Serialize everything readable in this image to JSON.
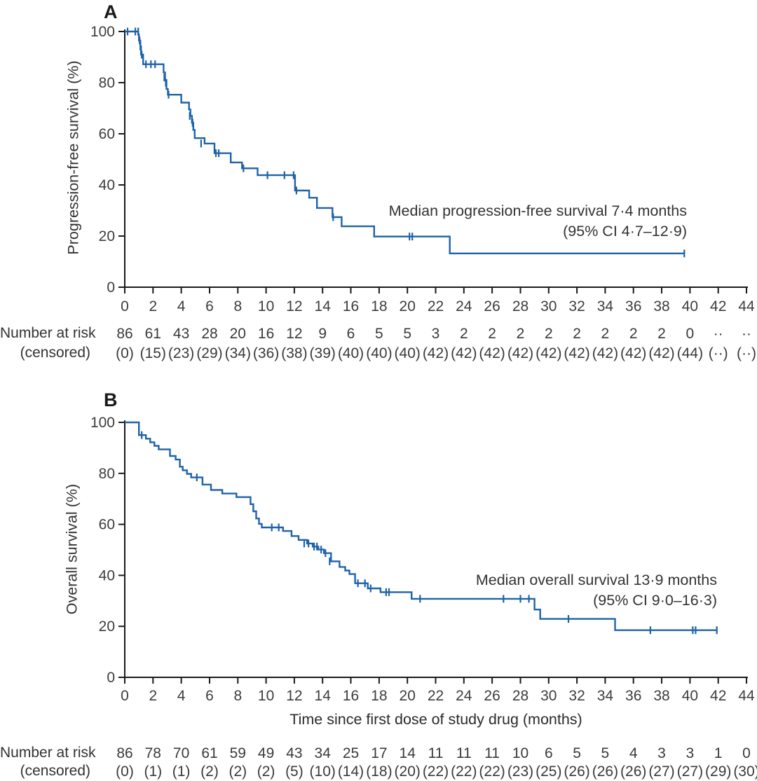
{
  "colors": {
    "curve": "#1e63a8",
    "axis": "#1a1a1a",
    "tick_text": "#3d3d3d",
    "risk_text": "#3a3a3a"
  },
  "chart_data": [
    {
      "type": "line",
      "subtype": "kaplan_meier_step",
      "panel_label": "A",
      "title": "",
      "xlabel": "",
      "ylabel": "Progression-free survival (%)",
      "xlim": [
        0,
        44
      ],
      "ylim": [
        0,
        100
      ],
      "x_ticks": [
        0,
        2,
        4,
        6,
        8,
        10,
        12,
        14,
        16,
        18,
        20,
        22,
        24,
        26,
        28,
        30,
        32,
        34,
        36,
        38,
        40,
        42,
        44
      ],
      "y_ticks": [
        0,
        20,
        40,
        60,
        80,
        100
      ],
      "grid": "off",
      "annotation": [
        "Median progression-free survival 7·4 months",
        "(95% CI 4·7–12·9)"
      ],
      "median_months": "7·4",
      "ci_95": "4·7–12·9",
      "series": [
        {
          "name": "Progression-free survival",
          "steps": [
            [
              0,
              100
            ],
            [
              0.95,
              98.8
            ],
            [
              1.0,
              96.5
            ],
            [
              1.1,
              94.2
            ],
            [
              1.15,
              91
            ],
            [
              1.3,
              87.2
            ],
            [
              2.75,
              84
            ],
            [
              2.85,
              81
            ],
            [
              2.95,
              77.5
            ],
            [
              3.05,
              75.3
            ],
            [
              4.0,
              72.2
            ],
            [
              4.55,
              69.5
            ],
            [
              4.65,
              67
            ],
            [
              4.75,
              64.3
            ],
            [
              4.85,
              61.5
            ],
            [
              4.95,
              58.3
            ],
            [
              5.65,
              56.2
            ],
            [
              6.35,
              52.4
            ],
            [
              7.5,
              48.8
            ],
            [
              8.3,
              46.5
            ],
            [
              9.4,
              43.8
            ],
            [
              12.05,
              37.8
            ],
            [
              13.05,
              35
            ],
            [
              13.6,
              31
            ],
            [
              14.7,
              27.4
            ],
            [
              15.35,
              23.8
            ],
            [
              17.65,
              19.8
            ],
            [
              23.0,
              13.2
            ],
            [
              39.6,
              13.2
            ]
          ],
          "censor_marks": [
            [
              0.2,
              100
            ],
            [
              0.75,
              100
            ],
            [
              0.95,
              100
            ],
            [
              1.05,
              96.5
            ],
            [
              1.1,
              94.2
            ],
            [
              1.2,
              91
            ],
            [
              1.5,
              87.2
            ],
            [
              1.85,
              87.2
            ],
            [
              2.15,
              87.2
            ],
            [
              2.8,
              82
            ],
            [
              2.9,
              80
            ],
            [
              3.1,
              75.3
            ],
            [
              4.6,
              67
            ],
            [
              4.8,
              64.3
            ],
            [
              5.4,
              56.2
            ],
            [
              6.45,
              52.4
            ],
            [
              6.65,
              52.4
            ],
            [
              8.4,
              46.5
            ],
            [
              10.1,
              43.8
            ],
            [
              11.3,
              43.8
            ],
            [
              11.95,
              43.8
            ],
            [
              12.15,
              37.8
            ],
            [
              14.75,
              27.4
            ],
            [
              20.15,
              19.8
            ],
            [
              20.35,
              19.8
            ],
            [
              39.6,
              13.2
            ]
          ]
        }
      ],
      "number_at_risk": {
        "label": "Number at risk",
        "censored_label": "(censored)",
        "at_risk": [
          "86",
          "61",
          "43",
          "28",
          "20",
          "16",
          "12",
          "9",
          "6",
          "5",
          "5",
          "3",
          "2",
          "2",
          "2",
          "2",
          "2",
          "2",
          "2",
          "2",
          "0",
          "··",
          "··"
        ],
        "censored": [
          "(0)",
          "(15)",
          "(23)",
          "(29)",
          "(34)",
          "(36)",
          "(38)",
          "(39)",
          "(40)",
          "(40)",
          "(40)",
          "(42)",
          "(42)",
          "(42)",
          "(42)",
          "(42)",
          "(42)",
          "(42)",
          "(42)",
          "(42)",
          "(44)",
          "(··)",
          "(··)"
        ]
      }
    },
    {
      "type": "line",
      "subtype": "kaplan_meier_step",
      "panel_label": "B",
      "title": "",
      "xlabel": "Time since first dose of study drug (months)",
      "ylabel": "Overall survival (%)",
      "xlim": [
        0,
        44
      ],
      "ylim": [
        0,
        100
      ],
      "x_ticks": [
        0,
        2,
        4,
        6,
        8,
        10,
        12,
        14,
        16,
        18,
        20,
        22,
        24,
        26,
        28,
        30,
        32,
        34,
        36,
        38,
        40,
        42,
        44
      ],
      "y_ticks": [
        0,
        20,
        40,
        60,
        80,
        100
      ],
      "grid": "off",
      "annotation": [
        "Median overall survival 13·9 months",
        "(95% CI 9·0–16·3)"
      ],
      "median_months": "13·9",
      "ci_95": "9·0–16·3",
      "series": [
        {
          "name": "Overall survival",
          "steps": [
            [
              0,
              100
            ],
            [
              1.0,
              95
            ],
            [
              1.5,
              93.6
            ],
            [
              1.8,
              92.2
            ],
            [
              2.1,
              90.8
            ],
            [
              2.4,
              89.4
            ],
            [
              3.2,
              86.8
            ],
            [
              3.6,
              85.4
            ],
            [
              3.9,
              82.6
            ],
            [
              4.1,
              81.2
            ],
            [
              4.4,
              79.8
            ],
            [
              4.7,
              78.4
            ],
            [
              5.5,
              75.6
            ],
            [
              6.1,
              73.5
            ],
            [
              6.9,
              72.1
            ],
            [
              7.9,
              70.7
            ],
            [
              8.9,
              67.9
            ],
            [
              9.1,
              65.1
            ],
            [
              9.3,
              62.3
            ],
            [
              9.5,
              60.2
            ],
            [
              9.7,
              58.8
            ],
            [
              11.2,
              57.4
            ],
            [
              11.8,
              55.4
            ],
            [
              12.3,
              53.9
            ],
            [
              12.9,
              52.5
            ],
            [
              13.3,
              51.3
            ],
            [
              13.7,
              50.1
            ],
            [
              14.1,
              48.7
            ],
            [
              14.6,
              45.5
            ],
            [
              15.2,
              43.3
            ],
            [
              15.6,
              41.9
            ],
            [
              15.9,
              40.5
            ],
            [
              16.3,
              36.9
            ],
            [
              17.2,
              34.9
            ],
            [
              18.1,
              33.4
            ],
            [
              20.3,
              30.8
            ],
            [
              29.0,
              26.6
            ],
            [
              29.4,
              22.9
            ],
            [
              34.7,
              18.5
            ],
            [
              41.9,
              18.5
            ]
          ],
          "censor_marks": [
            [
              1.2,
              95
            ],
            [
              5.1,
              78.4
            ],
            [
              10.4,
              58.8
            ],
            [
              10.9,
              58.8
            ],
            [
              12.7,
              52.5
            ],
            [
              13.0,
              52.5
            ],
            [
              13.4,
              51.3
            ],
            [
              13.6,
              51.3
            ],
            [
              13.9,
              50.1
            ],
            [
              14.2,
              48.7
            ],
            [
              14.5,
              45.5
            ],
            [
              16.5,
              36.9
            ],
            [
              17.0,
              36.9
            ],
            [
              17.4,
              34.9
            ],
            [
              18.5,
              33.4
            ],
            [
              18.7,
              33.4
            ],
            [
              20.9,
              30.8
            ],
            [
              26.8,
              30.8
            ],
            [
              28.0,
              30.8
            ],
            [
              28.6,
              30.8
            ],
            [
              31.4,
              22.9
            ],
            [
              37.2,
              18.5
            ],
            [
              40.2,
              18.5
            ],
            [
              40.4,
              18.5
            ],
            [
              41.9,
              18.5
            ]
          ]
        }
      ],
      "number_at_risk": {
        "label": "Number at risk",
        "censored_label": "(censored)",
        "at_risk": [
          "86",
          "78",
          "70",
          "61",
          "59",
          "49",
          "43",
          "34",
          "25",
          "17",
          "14",
          "11",
          "11",
          "11",
          "10",
          "6",
          "5",
          "5",
          "4",
          "3",
          "3",
          "1",
          "0"
        ],
        "censored": [
          "(0)",
          "(1)",
          "(1)",
          "(2)",
          "(2)",
          "(2)",
          "(5)",
          "(10)",
          "(14)",
          "(18)",
          "(20)",
          "(22)",
          "(22)",
          "(22)",
          "(23)",
          "(25)",
          "(26)",
          "(26)",
          "(26)",
          "(27)",
          "(27)",
          "(29)",
          "(30)"
        ]
      }
    }
  ]
}
